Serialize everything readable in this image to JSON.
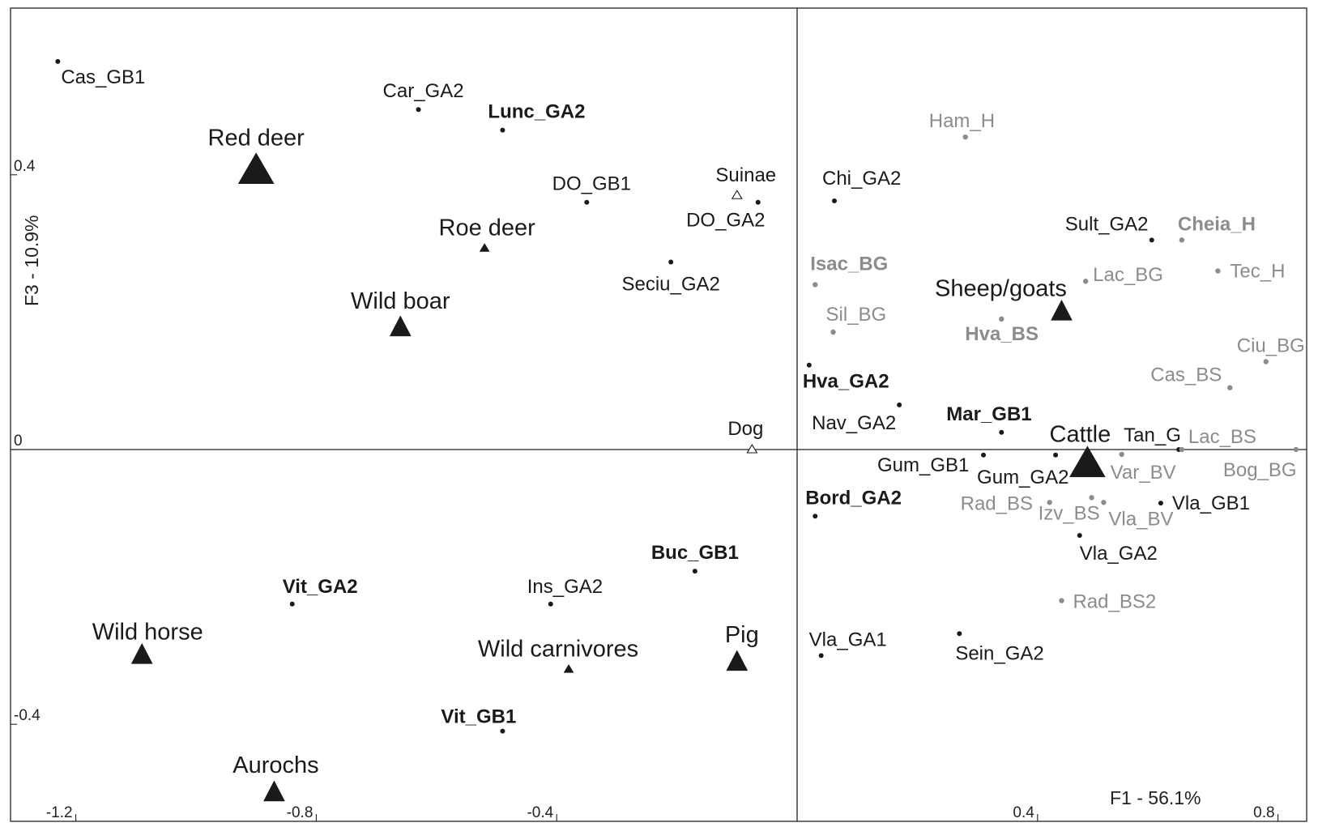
{
  "chart_data": {
    "type": "scatter",
    "title": "",
    "xlabel": "F1 - 56.1%",
    "ylabel": "F3 - 10.9%",
    "xlim": [
      -1.25,
      0.86
    ],
    "ylim": [
      -0.5,
      0.58
    ],
    "x_ticks": [
      {
        "value": -1.2,
        "label": "-1.2"
      },
      {
        "value": -0.8,
        "label": "-0.8"
      },
      {
        "value": -0.4,
        "label": "-0.4"
      },
      {
        "value": 0.4,
        "label": "0.4"
      },
      {
        "value": 0.8,
        "label": "0.8"
      }
    ],
    "y_ticks": [
      {
        "value": 0.4,
        "label": "0.4"
      },
      {
        "value": 0,
        "label": "0"
      },
      {
        "value": -0.4,
        "label": "-0.4"
      }
    ],
    "grid": false,
    "colors": {
      "black": "#1a1a1a",
      "grey": "#8c8c8c"
    },
    "taxa": [
      {
        "name": "Red deer",
        "x": -0.9,
        "y": 0.405,
        "size": "large",
        "filled": true
      },
      {
        "name": "Roe deer",
        "x": -0.52,
        "y": 0.293,
        "size": "small",
        "filled": true
      },
      {
        "name": "Wild boar",
        "x": -0.66,
        "y": 0.177,
        "size": "medium",
        "filled": true
      },
      {
        "name": "Suinae",
        "x": -0.1,
        "y": 0.37,
        "size": "small",
        "filled": false
      },
      {
        "name": "Dog",
        "x": -0.075,
        "y": 0.0,
        "size": "small",
        "filled": false
      },
      {
        "name": "Sheep/goats",
        "x": 0.44,
        "y": 0.2,
        "size": "medium",
        "filled": true
      },
      {
        "name": "Cattle",
        "x": 0.483,
        "y": -0.022,
        "size": "large",
        "filled": true
      },
      {
        "name": "Wild horse",
        "x": -1.09,
        "y": -0.3,
        "size": "medium",
        "filled": true
      },
      {
        "name": "Wild carnivores",
        "x": -0.38,
        "y": -0.32,
        "size": "small",
        "filled": true
      },
      {
        "name": "Pig",
        "x": -0.1,
        "y": -0.31,
        "size": "medium",
        "filled": true
      },
      {
        "name": "Aurochs",
        "x": -0.87,
        "y": -0.5,
        "size": "medium",
        "filled": true
      }
    ],
    "sites": [
      {
        "name": "Cas_GB1",
        "x": -1.23,
        "y": 0.565,
        "color": "black",
        "bold": false
      },
      {
        "name": "Car_GA2",
        "x": -0.63,
        "y": 0.495,
        "color": "black",
        "bold": false
      },
      {
        "name": "Lunc_GA2",
        "x": -0.49,
        "y": 0.465,
        "color": "black",
        "bold": true
      },
      {
        "name": "DO_GB1",
        "x": -0.35,
        "y": 0.36,
        "color": "black",
        "bold": false
      },
      {
        "name": "DO_GA2",
        "x": -0.065,
        "y": 0.36,
        "color": "black",
        "bold": false
      },
      {
        "name": "Seciu_GA2",
        "x": -0.21,
        "y": 0.273,
        "color": "black",
        "bold": false
      },
      {
        "name": "Chi_GA2",
        "x": 0.062,
        "y": 0.362,
        "color": "black",
        "bold": false
      },
      {
        "name": "Sult_GA2",
        "x": 0.59,
        "y": 0.305,
        "color": "black",
        "bold": false
      },
      {
        "name": "Hva_GA2",
        "x": 0.02,
        "y": 0.123,
        "color": "black",
        "bold": true
      },
      {
        "name": "Nav_GA2",
        "x": 0.17,
        "y": 0.065,
        "color": "black",
        "bold": false
      },
      {
        "name": "Mar_GB1",
        "x": 0.34,
        "y": 0.025,
        "color": "black",
        "bold": true
      },
      {
        "name": "Gum_GB1",
        "x": 0.31,
        "y": -0.008,
        "color": "black",
        "bold": false
      },
      {
        "name": "Gum_GA2",
        "x": 0.43,
        "y": -0.008,
        "color": "black",
        "bold": false
      },
      {
        "name": "Tan_G",
        "x": 0.635,
        "y": 0.0,
        "color": "black",
        "bold": false
      },
      {
        "name": "Bord_GA2",
        "x": 0.03,
        "y": -0.097,
        "color": "black",
        "bold": true
      },
      {
        "name": "Vla_GB1",
        "x": 0.605,
        "y": -0.078,
        "color": "black",
        "bold": false
      },
      {
        "name": "Vla_GA2",
        "x": 0.47,
        "y": -0.125,
        "color": "black",
        "bold": false
      },
      {
        "name": "Sein_GA2",
        "x": 0.27,
        "y": -0.268,
        "color": "black",
        "bold": false
      },
      {
        "name": "Vla_GA1",
        "x": 0.04,
        "y": -0.3,
        "color": "black",
        "bold": false
      },
      {
        "name": "Buc_GB1",
        "x": -0.17,
        "y": -0.177,
        "color": "black",
        "bold": true
      },
      {
        "name": "Vit_GA2",
        "x": -0.84,
        "y": -0.225,
        "color": "black",
        "bold": true
      },
      {
        "name": "Ins_GA2",
        "x": -0.41,
        "y": -0.225,
        "color": "black",
        "bold": false
      },
      {
        "name": "Vit_GB1",
        "x": -0.49,
        "y": -0.41,
        "color": "black",
        "bold": true
      },
      {
        "name": "Ham_H",
        "x": 0.28,
        "y": 0.455,
        "color": "grey",
        "bold": false
      },
      {
        "name": "Cheia_H",
        "x": 0.64,
        "y": 0.305,
        "color": "grey",
        "bold": true
      },
      {
        "name": "Tec_H",
        "x": 0.7,
        "y": 0.26,
        "color": "grey",
        "bold": false
      },
      {
        "name": "Lac_BG",
        "x": 0.48,
        "y": 0.245,
        "color": "grey",
        "bold": false
      },
      {
        "name": "Isac_BG",
        "x": 0.03,
        "y": 0.24,
        "color": "grey",
        "bold": true
      },
      {
        "name": "Sil_BG",
        "x": 0.06,
        "y": 0.171,
        "color": "grey",
        "bold": false
      },
      {
        "name": "Hva_BS",
        "x": 0.34,
        "y": 0.19,
        "color": "grey",
        "bold": true
      },
      {
        "name": "Ciu_BG",
        "x": 0.78,
        "y": 0.128,
        "color": "grey",
        "bold": false
      },
      {
        "name": "Cas_BS",
        "x": 0.72,
        "y": 0.09,
        "color": "grey",
        "bold": false
      },
      {
        "name": "Lac_BS",
        "x": 0.64,
        "y": 0.0,
        "color": "grey",
        "bold": false
      },
      {
        "name": "Bog_BG",
        "x": 0.83,
        "y": 0.0,
        "color": "grey",
        "bold": false
      },
      {
        "name": "Var_BV",
        "x": 0.54,
        "y": -0.007,
        "color": "grey",
        "bold": false
      },
      {
        "name": "Rad_BS",
        "x": 0.42,
        "y": -0.077,
        "color": "grey",
        "bold": false
      },
      {
        "name": "Izv_BS",
        "x": 0.49,
        "y": -0.07,
        "color": "grey",
        "bold": false
      },
      {
        "name": "Vla_BV",
        "x": 0.51,
        "y": -0.077,
        "color": "grey",
        "bold": false
      },
      {
        "name": "Rad_BS2",
        "x": 0.44,
        "y": -0.22,
        "color": "grey",
        "bold": false
      }
    ]
  }
}
